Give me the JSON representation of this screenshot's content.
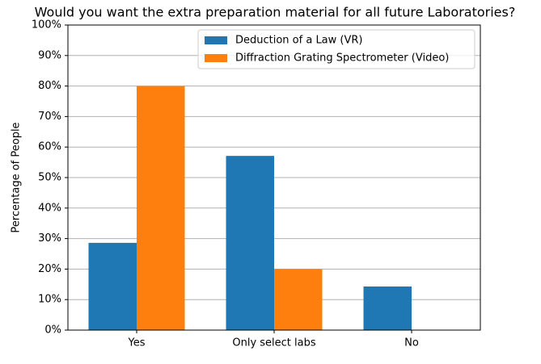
{
  "chart_data": {
    "type": "bar",
    "title": "Would you want the extra preparation material for all future Laboratories?",
    "y_label": "Percentage of People",
    "categories": [
      "Yes",
      "Only select labs",
      "No"
    ],
    "series": [
      {
        "name": "Deduction of a Law (VR)",
        "color": "#1f77b4",
        "values": [
          28.6,
          57.1,
          14.3
        ]
      },
      {
        "name": "Diffraction Grating Spectrometer (Video)",
        "color": "#ff7f0e",
        "values": [
          80,
          20,
          0
        ]
      }
    ],
    "ylim": [
      0,
      100
    ],
    "yticks": [
      {
        "value": 0,
        "label": "0%"
      },
      {
        "value": 10,
        "label": "10%"
      },
      {
        "value": 20,
        "label": "20%"
      },
      {
        "value": 30,
        "label": "30%"
      },
      {
        "value": 40,
        "label": "40%"
      },
      {
        "value": 50,
        "label": "50%"
      },
      {
        "value": 60,
        "label": "60%"
      },
      {
        "value": 70,
        "label": "70%"
      },
      {
        "value": 80,
        "label": "80%"
      },
      {
        "value": 90,
        "label": "90%"
      },
      {
        "value": 100,
        "label": "100%"
      }
    ],
    "grid": true,
    "legend": "upper right"
  }
}
